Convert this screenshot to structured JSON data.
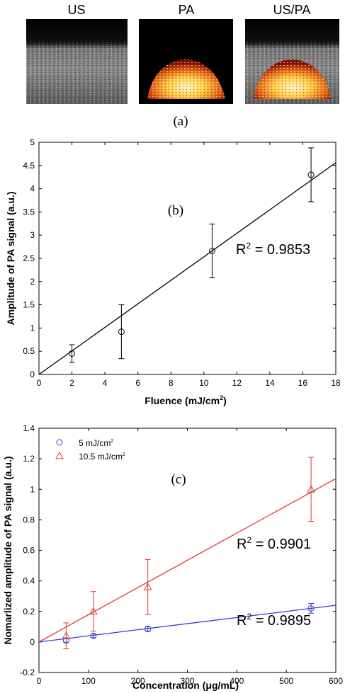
{
  "panel_a": {
    "images": [
      {
        "label": "US"
      },
      {
        "label": "PA"
      },
      {
        "label": "US/PA"
      }
    ],
    "caption": "(a)"
  },
  "chart_data": [
    {
      "type": "scatter",
      "panel_label": "(b)",
      "xlabel": "Fluence (mJ/cm",
      "xlabel_sup": "2",
      "xlabel_end": ")",
      "ylabel": "Amplitude of PA signal (a.u.)",
      "xlim": [
        0,
        18
      ],
      "ylim": [
        0,
        5
      ],
      "xticks": [
        0,
        2,
        4,
        6,
        8,
        10,
        12,
        14,
        16,
        18
      ],
      "yticks": [
        0,
        0.5,
        1,
        1.5,
        2,
        2.5,
        3,
        3.5,
        4,
        4.5,
        5
      ],
      "series": [
        {
          "marker": "circle",
          "color": "#000000",
          "x": [
            2,
            5,
            10.5,
            16.5
          ],
          "y": [
            0.45,
            0.92,
            2.66,
            4.3
          ],
          "yerr": [
            0.19,
            0.58,
            0.58,
            0.58
          ]
        }
      ],
      "fit": {
        "x0": 0,
        "y0": 0,
        "x1": 18,
        "y1": 4.56,
        "color": "#000000"
      },
      "annotations": [
        {
          "text": "R",
          "sup": "2",
          "rest": " = 0.9853"
        }
      ]
    },
    {
      "type": "scatter",
      "panel_label": "(c)",
      "xlabel": "Concentration (μg/mL)",
      "ylabel": "Nomarlized amplitude of PA signal (a.u.)",
      "xlim": [
        0,
        600
      ],
      "ylim": [
        -0.2,
        1.4
      ],
      "xticks": [
        0,
        100,
        200,
        300,
        400,
        500,
        600
      ],
      "yticks": [
        "-0.2",
        "0",
        "0.2",
        "0.4",
        "0.6",
        "0.8",
        "1",
        "1.2",
        "1.4"
      ],
      "legend_position": "top-left",
      "series": [
        {
          "name": "5 mJ/cm",
          "name_sup": "2",
          "marker": "circle",
          "color": "#3a3ad8",
          "x": [
            55,
            110,
            220,
            550
          ],
          "y": [
            0.01,
            0.04,
            0.085,
            0.22
          ],
          "yerr": [
            0.012,
            0.012,
            0.014,
            0.032
          ],
          "fit": {
            "x0": 0,
            "y0": 0,
            "x1": 600,
            "y1": 0.24
          }
        },
        {
          "name": "10.5 mJ/cm",
          "name_sup": "2",
          "marker": "triangle",
          "color": "#e03a3a",
          "x": [
            55,
            110,
            220,
            550
          ],
          "y": [
            0.04,
            0.2,
            0.36,
            1.0
          ],
          "yerr": [
            0.085,
            0.13,
            0.18,
            0.21
          ],
          "fit": {
            "x0": 0,
            "y0": 0,
            "x1": 600,
            "y1": 1.07
          }
        }
      ],
      "annotations": [
        {
          "text": "R",
          "sup": "2",
          "rest": " = 0.9901"
        },
        {
          "text": "R",
          "sup": "2",
          "rest": " = 0.9895"
        }
      ]
    }
  ]
}
